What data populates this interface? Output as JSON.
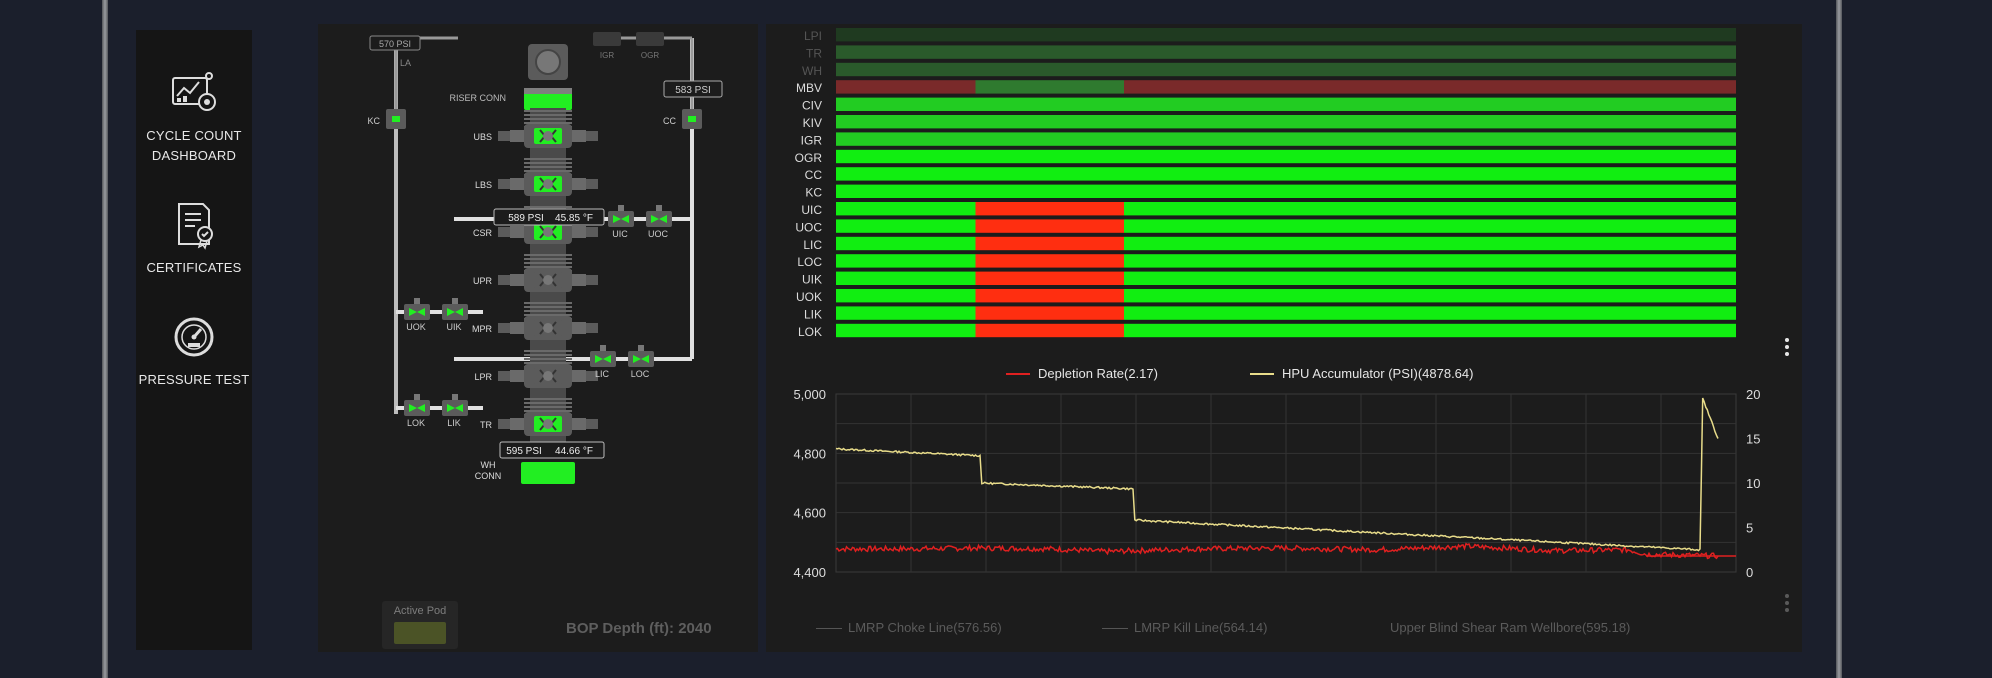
{
  "sidebar": {
    "items": [
      {
        "label": "CYCLE COUNT DASHBOARD",
        "icon": "dashboard-icon"
      },
      {
        "label": "CERTIFICATES",
        "icon": "certificate-icon"
      },
      {
        "label": "PRESSURE TEST",
        "icon": "gauge-icon"
      }
    ]
  },
  "schematic": {
    "top_left_pressure": "570 PSI",
    "top_right_pressure": "583 PSI",
    "la": "LA",
    "igr": "IGR",
    "ogr": "OGR",
    "riser_conn": "RISER CONN",
    "kc": "KC",
    "cc": "CC",
    "rams": [
      "UBS",
      "LBS",
      "CSR",
      "UPR",
      "MPR",
      "LPR",
      "TR"
    ],
    "upper_readout": {
      "pressure": "589 PSI",
      "temp": "45.85 °F"
    },
    "lower_readout": {
      "pressure": "595 PSI",
      "temp": "44.66 °F"
    },
    "valves": {
      "uic": "UIC",
      "uoc": "UOC",
      "uok": "UOK",
      "uik": "UIK",
      "lic": "LIC",
      "loc": "LOC",
      "lok": "LOK",
      "lik": "LIK"
    },
    "wh_conn_line1": "WH",
    "wh_conn_line2": "CONN",
    "colors": {
      "active": "#22ee22",
      "body": "#5b5b5b",
      "line": "#e0e0e0"
    }
  },
  "status": {
    "active_pod_label": "Active Pod",
    "bop_depth": "BOP Depth (ft): 2040"
  },
  "timeline": {
    "rows": [
      "LPI",
      "TR",
      "WH",
      "MBV",
      "CIV",
      "KIV",
      "IGR",
      "OGR",
      "CC",
      "KC",
      "UIC",
      "UOC",
      "LIC",
      "LOC",
      "UIK",
      "UOK",
      "LIK",
      "LOK"
    ],
    "colors": {
      "open": "#11ee11",
      "closed": "#ff2e10",
      "muted_open": "#2f7a2f",
      "muted_closed": "#7a2a2a"
    }
  },
  "chart_data": {
    "type": "line",
    "legend": [
      "Depletion Rate(2.17)",
      "HPU Accumulator (PSI)(4878.64)"
    ],
    "y_left": {
      "range": [
        4400,
        5000
      ],
      "ticks": [
        "5,000",
        "4,800",
        "4,600",
        "4,400"
      ]
    },
    "y_right": {
      "range": [
        0,
        20
      ],
      "ticks": [
        "20",
        "15",
        "10",
        "5",
        "0"
      ]
    },
    "series": [
      {
        "name": "HPU Accumulator (PSI)",
        "axis": "left",
        "color": "#e8dc8a",
        "x": [
          0,
          16,
          16.2,
          33,
          33.2,
          96,
          96.3,
          98
        ],
        "values": [
          4815,
          4792,
          4700,
          4680,
          4575,
          4475,
          4985,
          4850
        ]
      },
      {
        "name": "Depletion Rate",
        "axis": "right",
        "color": "#e02020",
        "x": [
          0,
          8,
          16,
          24,
          30,
          40,
          50,
          60,
          70,
          80,
          88,
          90,
          98
        ],
        "values": [
          2.6,
          2.6,
          2.7,
          2.6,
          2.3,
          2.6,
          2.7,
          2.5,
          2.9,
          2.4,
          2.5,
          2.0,
          1.8
        ]
      }
    ]
  },
  "bottom_legend": {
    "choke": "LMRP Choke Line(576.56)",
    "kill": "LMRP Kill Line(564.14)",
    "ubsr": "Upper Blind Shear Ram Wellbore(595.18)"
  }
}
